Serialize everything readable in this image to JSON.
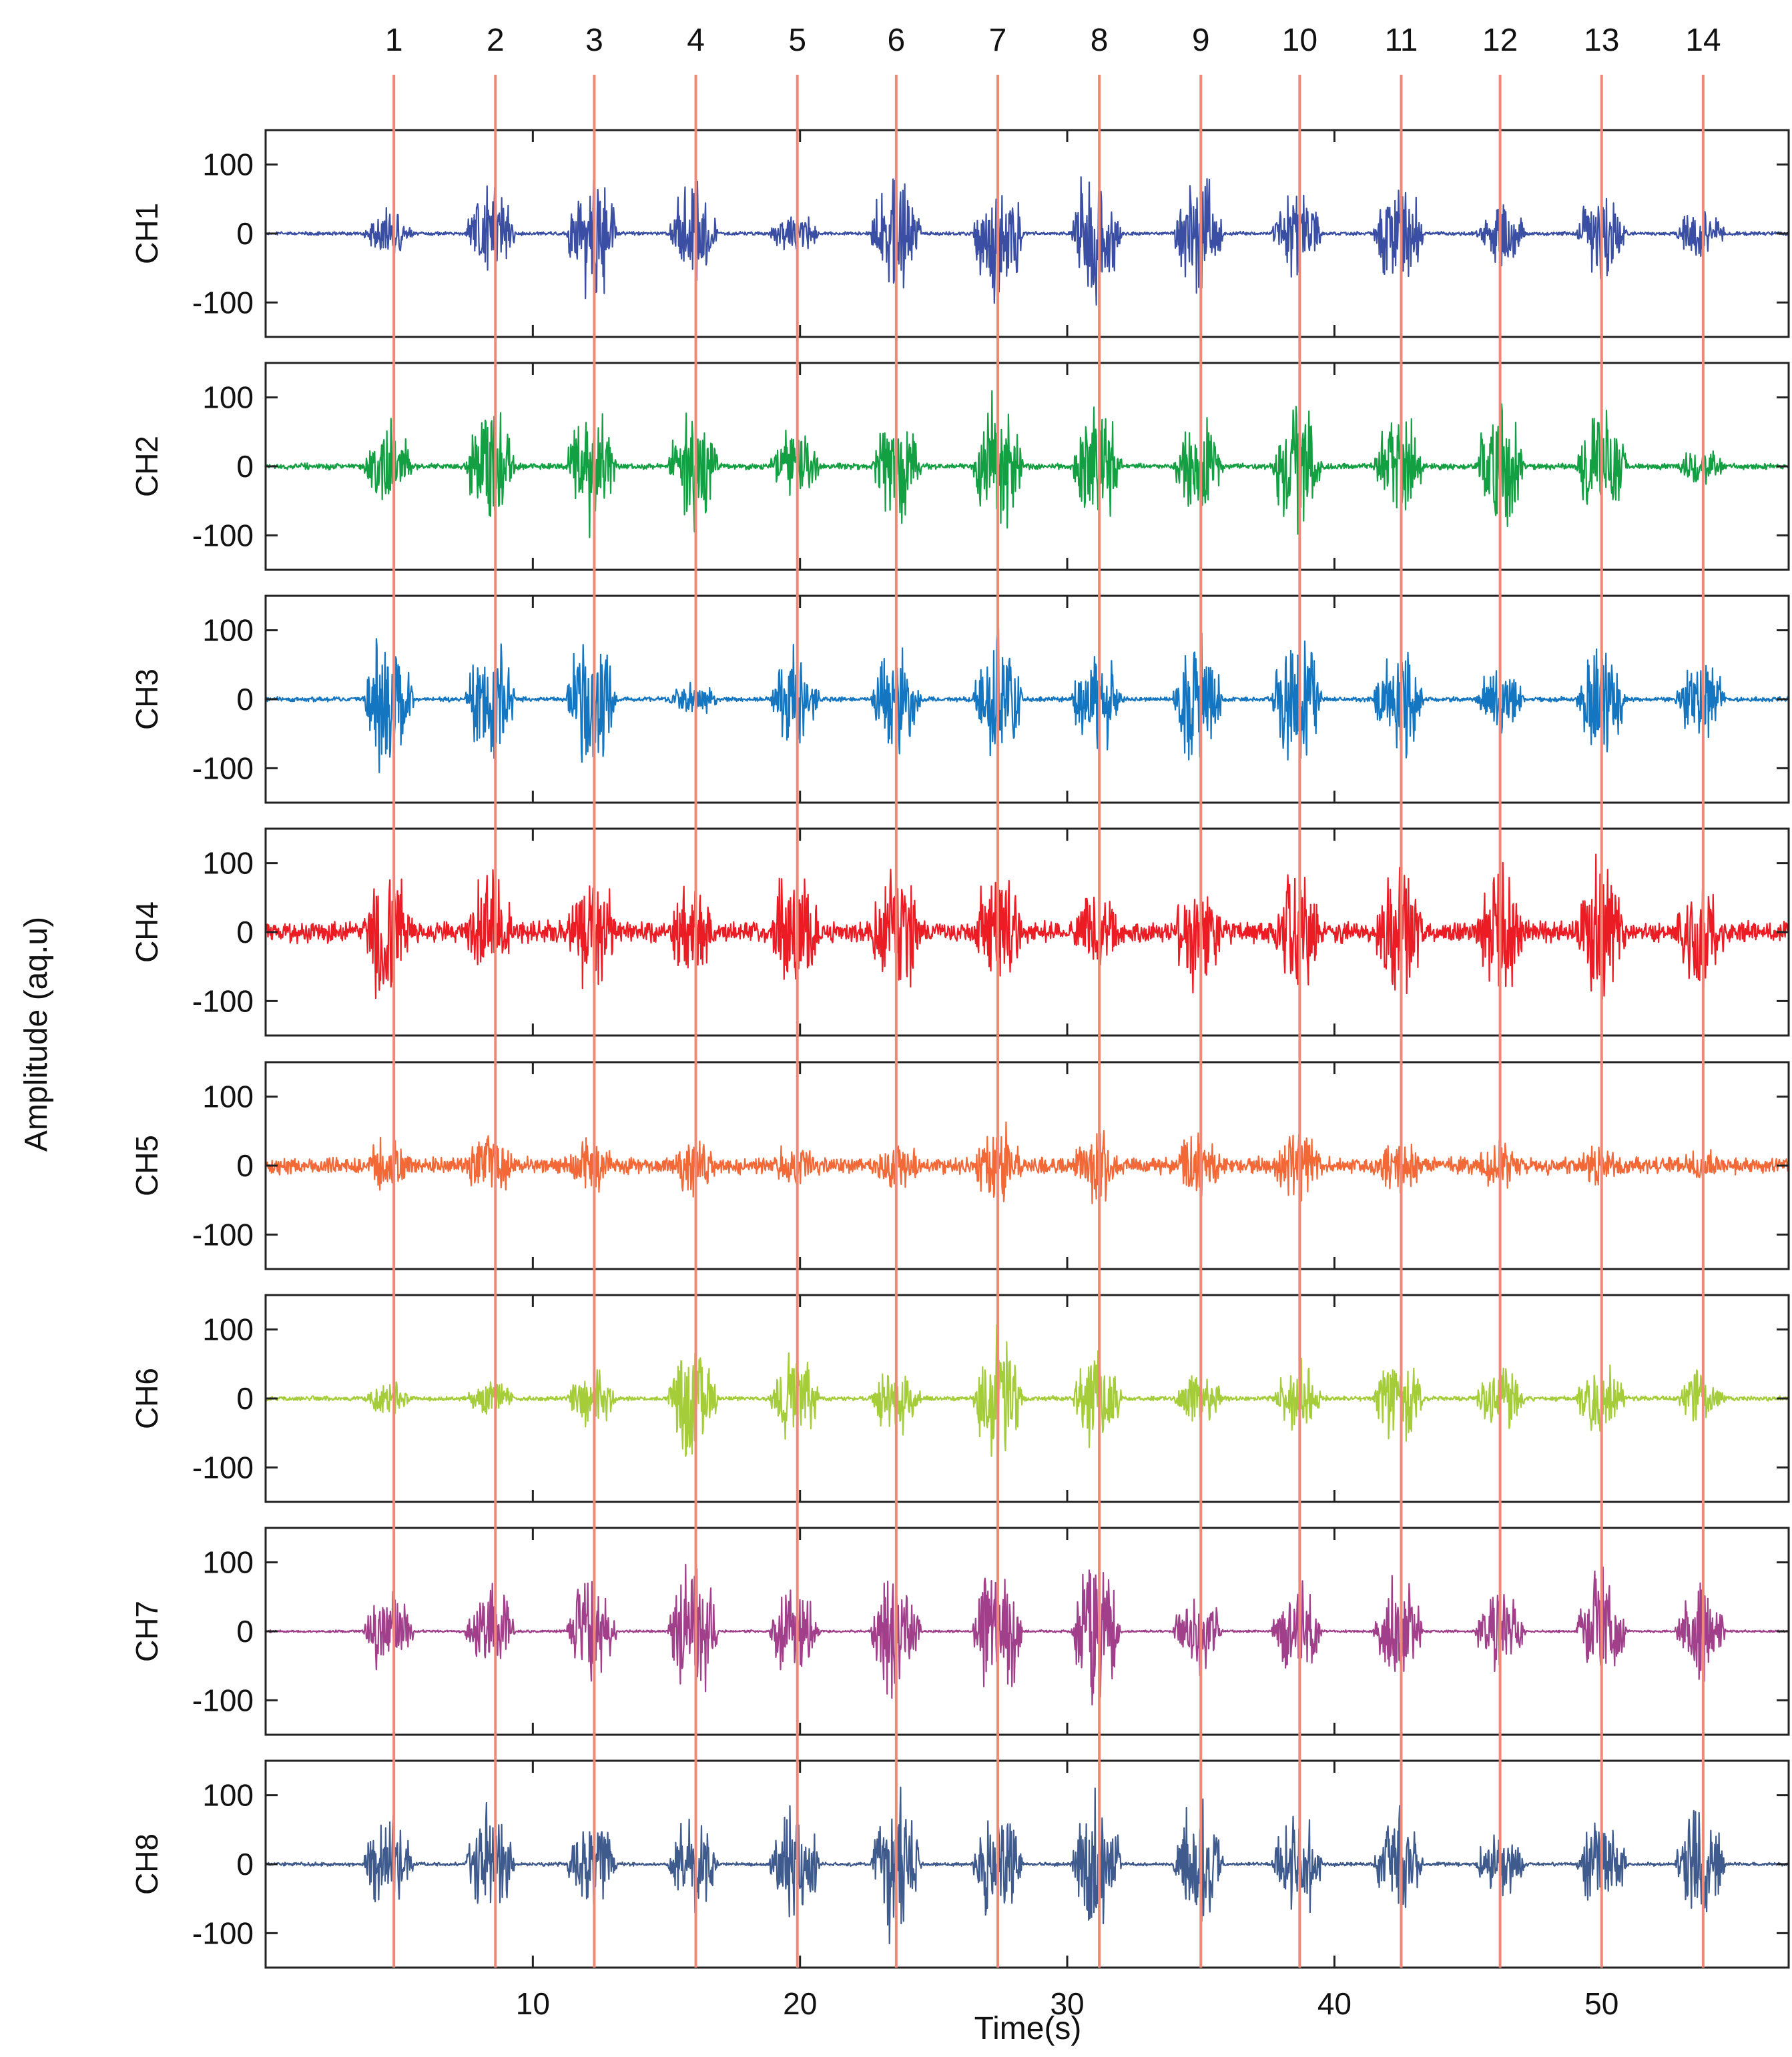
{
  "chart_data": {
    "type": "line",
    "title": "",
    "xlabel": "Time(s)",
    "ylabel": "Amplitude (aq.u)",
    "xlim": [
      0,
      57
    ],
    "ylim": [
      -150,
      150
    ],
    "xticks": [
      10,
      20,
      30,
      40,
      50
    ],
    "yticks": [
      100,
      0,
      -100
    ],
    "ytick_labels": [
      "100",
      "0",
      "-100"
    ],
    "grid": false,
    "marker_color": "#f08878",
    "markers": [
      {
        "label": "1",
        "x": 4.8
      },
      {
        "label": "2",
        "x": 8.6
      },
      {
        "label": "3",
        "x": 12.3
      },
      {
        "label": "4",
        "x": 16.1
      },
      {
        "label": "5",
        "x": 19.9
      },
      {
        "label": "6",
        "x": 23.6
      },
      {
        "label": "7",
        "x": 27.4
      },
      {
        "label": "8",
        "x": 31.2
      },
      {
        "label": "9",
        "x": 35.0
      },
      {
        "label": "10",
        "x": 38.7
      },
      {
        "label": "11",
        "x": 42.5
      },
      {
        "label": "12",
        "x": 46.2
      },
      {
        "label": "13",
        "x": 50.0
      },
      {
        "label": "14",
        "x": 53.8
      }
    ],
    "burst_centers": [
      4.6,
      8.4,
      12.2,
      16.0,
      19.8,
      23.6,
      27.4,
      31.1,
      34.9,
      38.6,
      42.4,
      46.2,
      50.0,
      53.7
    ],
    "series": [
      {
        "name": "CH1",
        "color": "#3a4fa3",
        "noise": 3,
        "peaks": [
          40,
          85,
          120,
          95,
          35,
          110,
          125,
          125,
          110,
          70,
          95,
          60,
          80,
          45
        ]
      },
      {
        "name": "CH2",
        "color": "#13a043",
        "noise": 5,
        "peaks": [
          80,
          95,
          115,
          110,
          70,
          100,
          125,
          120,
          90,
          120,
          95,
          100,
          115,
          30
        ]
      },
      {
        "name": "CH3",
        "color": "#1475c1",
        "noise": 4,
        "peaks": [
          130,
          120,
          125,
          30,
          80,
          95,
          120,
          100,
          115,
          120,
          100,
          55,
          100,
          75
        ]
      },
      {
        "name": "CH4",
        "color": "#ec1c24",
        "noise": 18,
        "peaks": [
          130,
          100,
          125,
          80,
          130,
          125,
          125,
          75,
          100,
          115,
          120,
          115,
          120,
          120
        ]
      },
      {
        "name": "CH5",
        "color": "#f26837",
        "noise": 14,
        "peaks": [
          50,
          60,
          55,
          50,
          40,
          45,
          80,
          70,
          60,
          60,
          50,
          40,
          35,
          30
        ]
      },
      {
        "name": "CH6",
        "color": "#a4cd39",
        "noise": 4,
        "peaks": [
          30,
          30,
          50,
          130,
          80,
          70,
          120,
          90,
          45,
          60,
          80,
          55,
          70,
          45
        ]
      },
      {
        "name": "CH7",
        "color": "#a13f8b",
        "noise": 2,
        "peaks": [
          85,
          85,
          85,
          125,
          85,
          130,
          120,
          125,
          70,
          90,
          90,
          75,
          110,
          85
        ]
      },
      {
        "name": "CH8",
        "color": "#3f5a8c",
        "noise": 3,
        "peaks": [
          90,
          95,
          80,
          80,
          100,
          130,
          100,
          125,
          110,
          95,
          90,
          55,
          90,
          110
        ]
      }
    ]
  }
}
